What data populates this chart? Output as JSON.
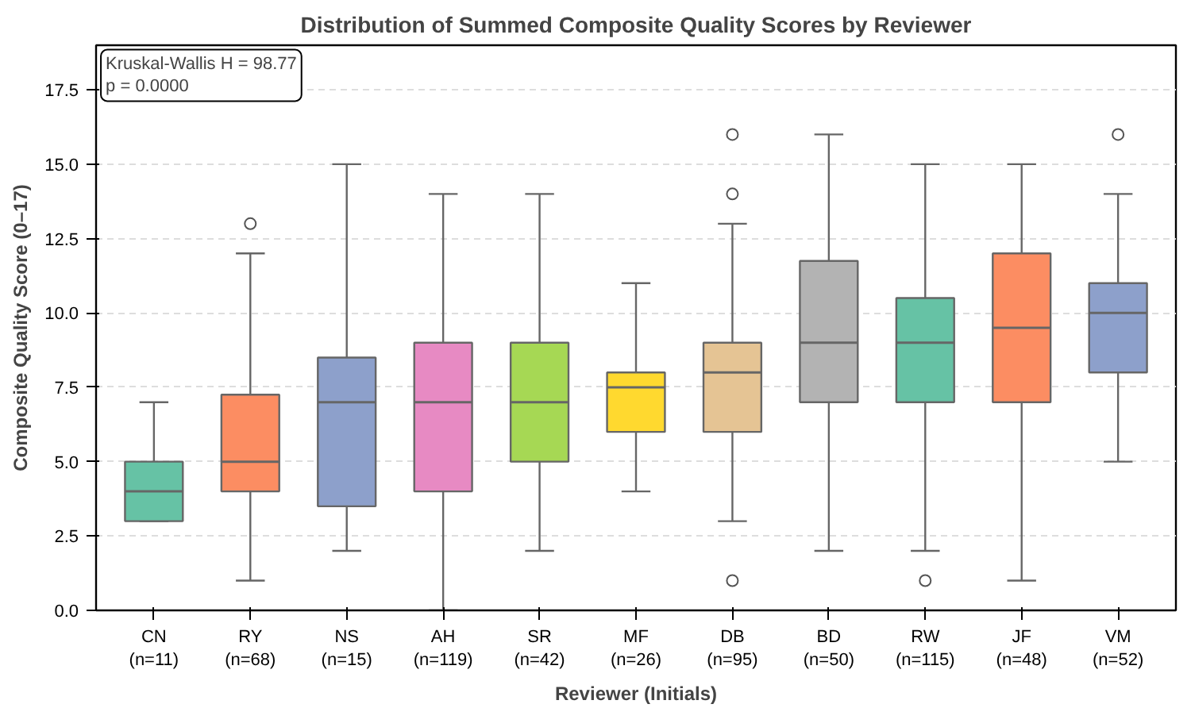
{
  "chart_data": {
    "type": "box",
    "title": "Distribution of Summed Composite Quality Scores by Reviewer",
    "xlabel": "Reviewer (Initials)",
    "ylabel": "Composite Quality Score (0–17)",
    "categories": [
      "CN\n(n=11)",
      "RY\n(n=68)",
      "NS\n(n=15)",
      "AH\n(n=119)",
      "SR\n(n=42)",
      "MF\n(n=26)",
      "DB\n(n=95)",
      "BD\n(n=50)",
      "RW\n(n=115)",
      "JF\n(n=48)",
      "VM\n(n=52)"
    ],
    "colors": [
      "#66c2a5",
      "#fc8d62",
      "#8da0cb",
      "#e78ac3",
      "#a6d854",
      "#ffd92f",
      "#e5c494",
      "#b3b3b3",
      "#66c2a5",
      "#fc8d62",
      "#8da0cb"
    ],
    "boxes": [
      {
        "low": 3,
        "q1": 3,
        "median": 4,
        "q3": 5,
        "high": 7
      },
      {
        "low": 1,
        "q1": 4,
        "median": 5,
        "q3": 7.25,
        "high": 12,
        "outliers": [
          13
        ]
      },
      {
        "low": 2,
        "q1": 3.5,
        "median": 7,
        "q3": 8.5,
        "high": 15
      },
      {
        "low": 0,
        "q1": 4,
        "median": 7,
        "q3": 9,
        "high": 14
      },
      {
        "low": 2,
        "q1": 5,
        "median": 7,
        "q3": 9,
        "high": 14
      },
      {
        "low": 4,
        "q1": 6,
        "median": 7.5,
        "q3": 8,
        "high": 11
      },
      {
        "low": 3,
        "q1": 6,
        "median": 8,
        "q3": 9,
        "high": 13,
        "outliers": [
          1,
          14,
          16
        ]
      },
      {
        "low": 2,
        "q1": 7,
        "median": 9,
        "q3": 11.75,
        "high": 16
      },
      {
        "low": 2,
        "q1": 7,
        "median": 9,
        "q3": 10.5,
        "high": 15,
        "outliers": [
          1
        ]
      },
      {
        "low": 1,
        "q1": 7,
        "median": 9.5,
        "q3": 12,
        "high": 15
      },
      {
        "low": 5,
        "q1": 8,
        "median": 10,
        "q3": 11,
        "high": 14,
        "outliers": [
          16
        ]
      }
    ],
    "ylim": [
      0,
      19
    ],
    "yticks": [
      {
        "value": 0,
        "label": "0.0"
      },
      2.5,
      {
        "value": 5,
        "label": "5.0"
      },
      7.5,
      {
        "value": 10,
        "label": "10.0"
      },
      12.5,
      {
        "value": 15,
        "label": "15.0"
      },
      17.5
    ],
    "grid": "y",
    "annotations": [
      "Kruskal-Wallis H = 98.77\n p = 0.0000"
    ]
  }
}
